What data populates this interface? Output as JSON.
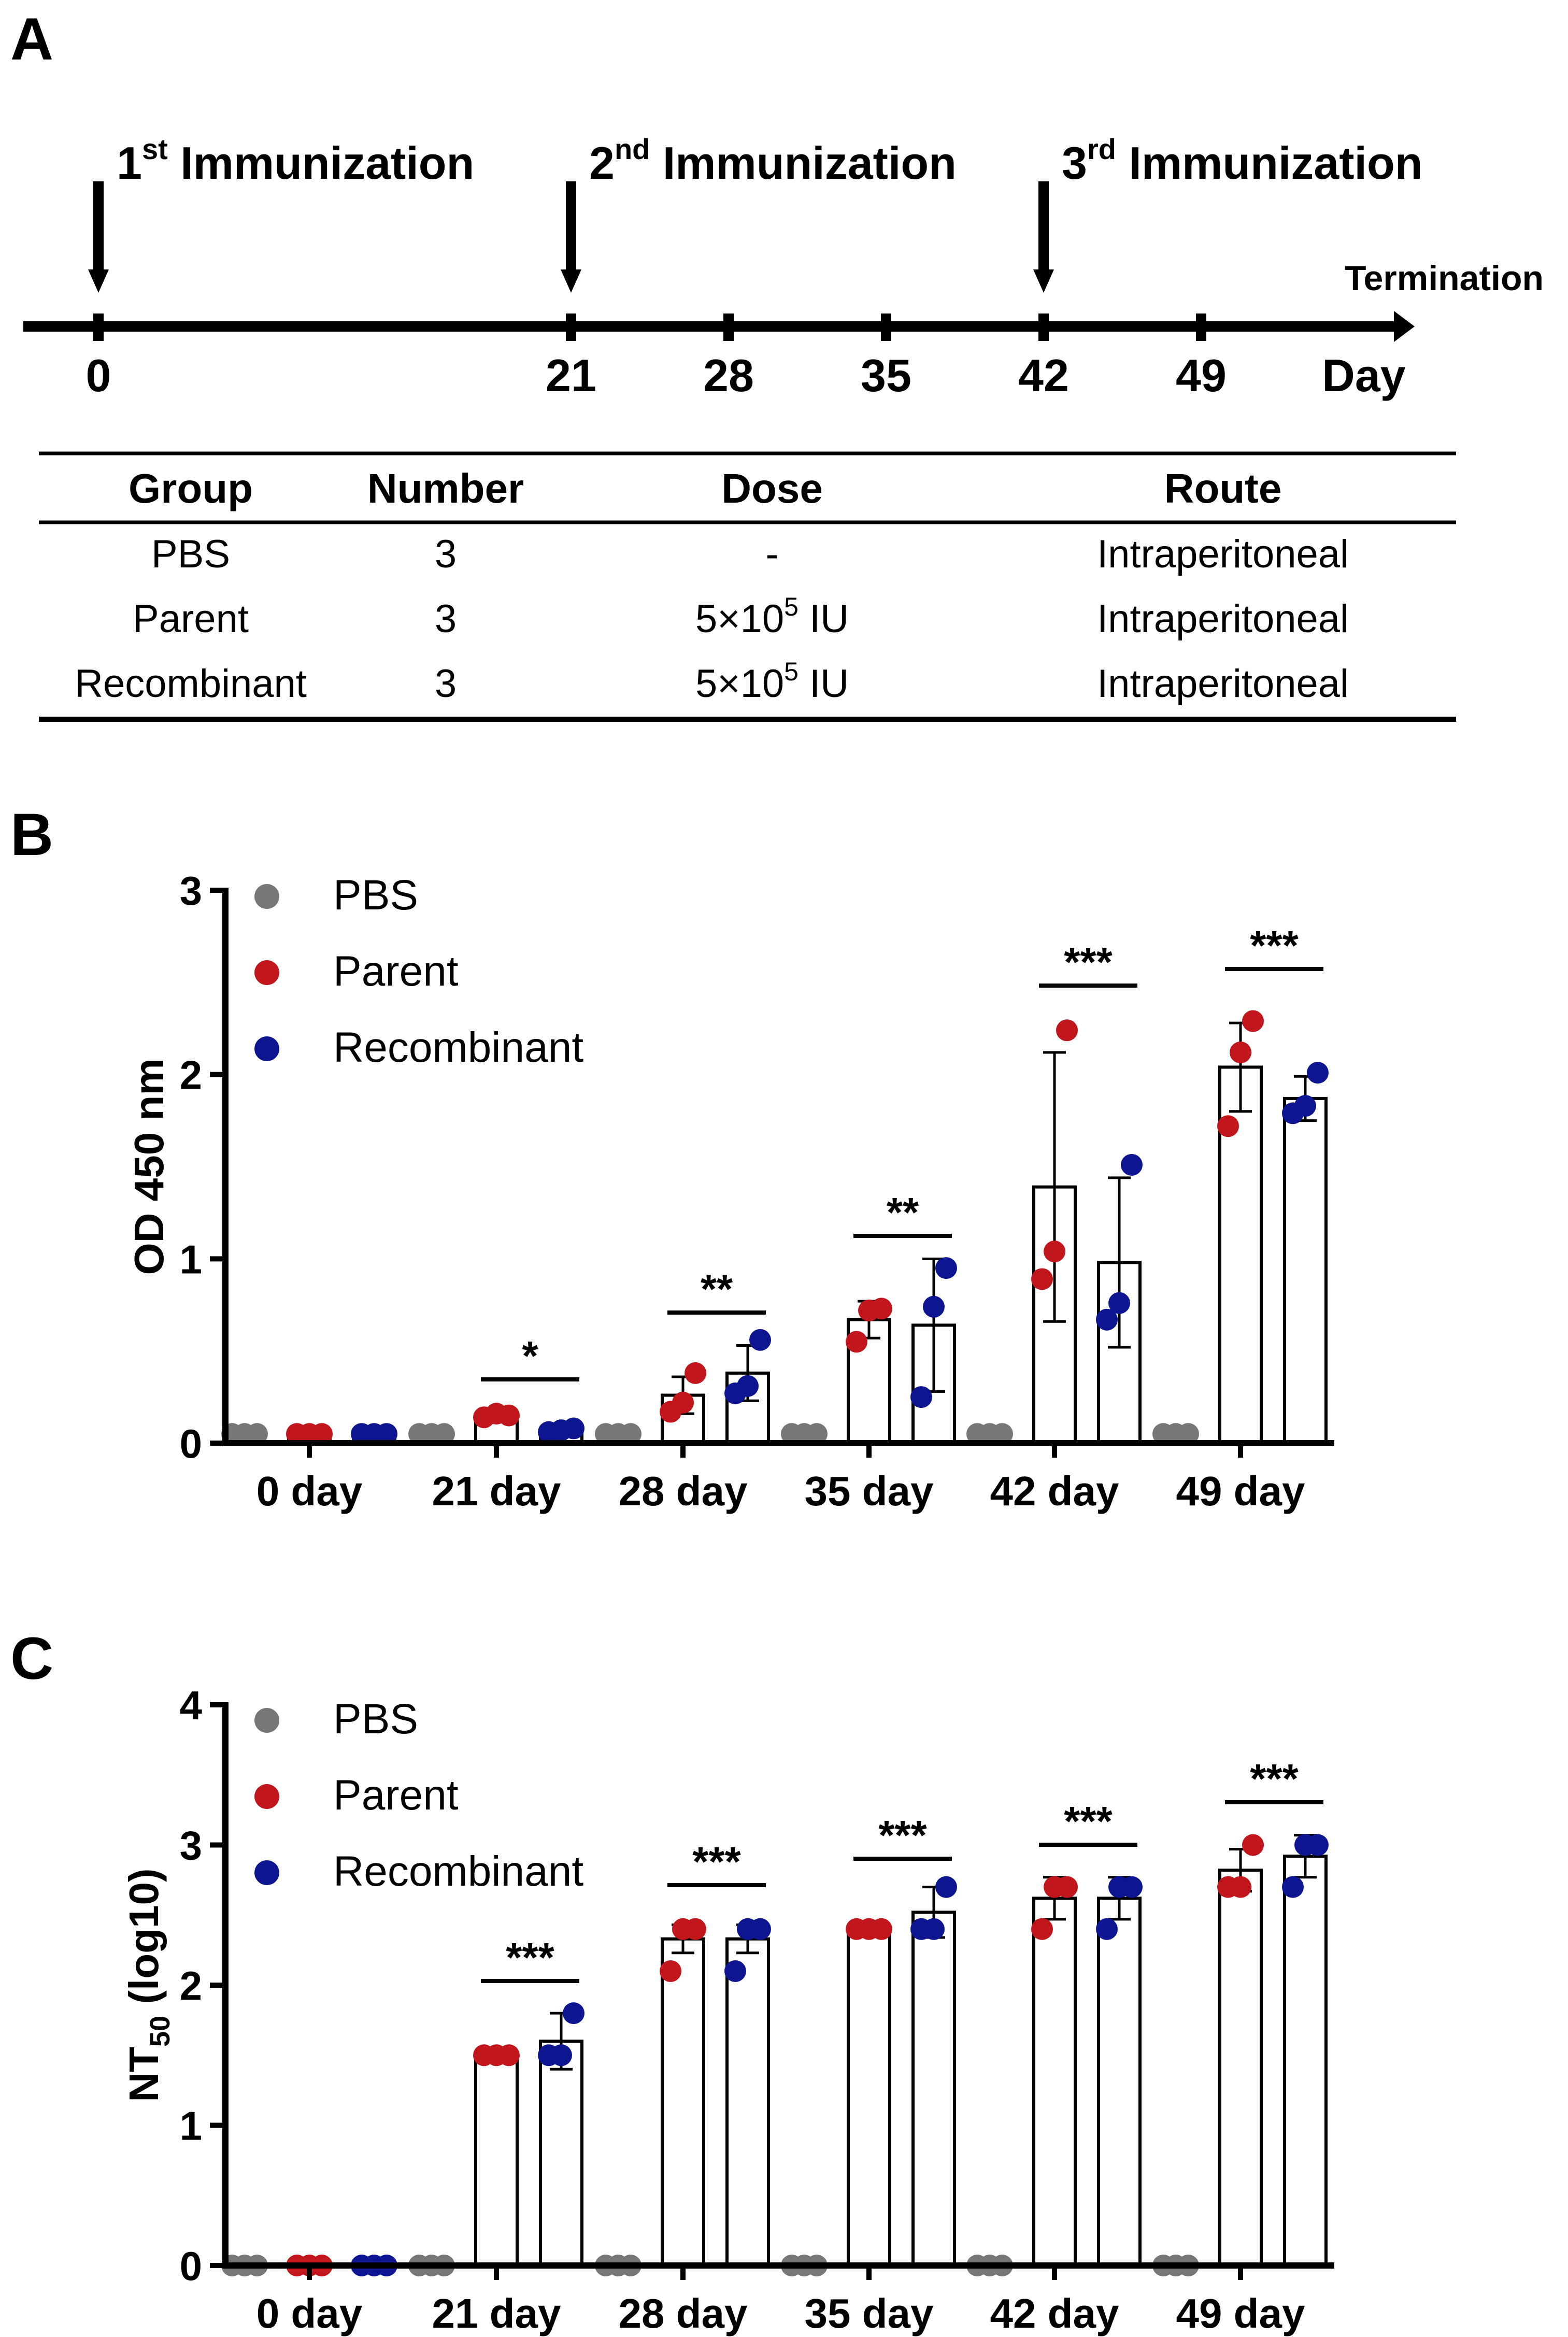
{
  "panel_a": {
    "label": "A",
    "immunizations": [
      {
        "num": "1",
        "sup": "st",
        "text": " Immunization",
        "day": 0
      },
      {
        "num": "2",
        "sup": "nd",
        "text": " Immunization",
        "day": 21
      },
      {
        "num": "3",
        "sup": "rd",
        "text": " Immunization",
        "day": 42
      }
    ],
    "termination_label": "Termination",
    "days": [
      0,
      21,
      28,
      35,
      42,
      49
    ],
    "day_unit": "Day",
    "table": {
      "headers": [
        "Group",
        "Number",
        "Dose",
        "Route"
      ],
      "rows": [
        {
          "group": "PBS",
          "number": "3",
          "dose": "-",
          "dose_exp": "",
          "dose_unit": "",
          "route": "Intraperitoneal"
        },
        {
          "group": "Parent",
          "number": "3",
          "dose": "5×10",
          "dose_exp": "5",
          "dose_unit": " IU",
          "route": "Intraperitoneal"
        },
        {
          "group": "Recombinant",
          "number": "3",
          "dose": "5×10",
          "dose_exp": "5",
          "dose_unit": " IU",
          "route": "Intraperitoneal"
        }
      ]
    }
  },
  "colors": {
    "PBS": "#777777",
    "Parent": "#c0161c",
    "Recombinant": "#0d1690"
  },
  "chart_data": [
    {
      "panel": "B",
      "type": "bar",
      "ylabel": "OD 450 nm",
      "ylim": [
        0,
        3
      ],
      "yticks": [
        0,
        1,
        2,
        3
      ],
      "categories": [
        "0 day",
        "21 day",
        "28 day",
        "35 day",
        "42 day",
        "49 day"
      ],
      "legend": [
        "PBS",
        "Parent",
        "Recombinant"
      ],
      "series": [
        {
          "name": "PBS",
          "means": [
            0.05,
            0.05,
            0.05,
            0.05,
            0.05,
            0.05
          ],
          "sd": [
            0,
            0,
            0,
            0,
            0,
            0
          ],
          "points": [
            [
              0.05,
              0.05,
              0.05
            ],
            [
              0.05,
              0.05,
              0.05
            ],
            [
              0.05,
              0.05,
              0.05
            ],
            [
              0.05,
              0.05,
              0.05
            ],
            [
              0.05,
              0.05,
              0.05
            ],
            [
              0.05,
              0.05,
              0.05
            ]
          ]
        },
        {
          "name": "Parent",
          "means": [
            0.05,
            0.15,
            0.26,
            0.67,
            1.39,
            2.04
          ],
          "sd": [
            0,
            0.02,
            0.1,
            0.1,
            0.73,
            0.24
          ],
          "points": [
            [
              0.05,
              0.05,
              0.05
            ],
            [
              0.14,
              0.16,
              0.15
            ],
            [
              0.17,
              0.22,
              0.38
            ],
            [
              0.55,
              0.72,
              0.73
            ],
            [
              0.89,
              1.04,
              2.24
            ],
            [
              1.72,
              2.12,
              2.29
            ]
          ]
        },
        {
          "name": "Recombinant",
          "means": [
            0.05,
            0.07,
            0.38,
            0.64,
            0.98,
            1.87
          ],
          "sd": [
            0,
            0.01,
            0.15,
            0.36,
            0.46,
            0.12
          ],
          "points": [
            [
              0.05,
              0.05,
              0.05
            ],
            [
              0.06,
              0.07,
              0.08
            ],
            [
              0.27,
              0.31,
              0.56
            ],
            [
              0.25,
              0.74,
              0.95
            ],
            [
              0.67,
              0.76,
              1.51
            ],
            [
              1.79,
              1.83,
              2.01
            ]
          ]
        }
      ],
      "significance": [
        {
          "category": "21 day",
          "label": "*"
        },
        {
          "category": "28 day",
          "label": "**"
        },
        {
          "category": "35 day",
          "label": "**"
        },
        {
          "category": "42 day",
          "label": "***"
        },
        {
          "category": "49 day",
          "label": "***"
        }
      ]
    },
    {
      "panel": "C",
      "type": "bar",
      "ylabel": "NT",
      "ylabel_sub": "50",
      "ylabel_suffix": " (log10)",
      "ylim": [
        0,
        4
      ],
      "yticks": [
        0,
        1,
        2,
        3,
        4
      ],
      "categories": [
        "0 day",
        "21 day",
        "28 day",
        "35 day",
        "42 day",
        "49 day"
      ],
      "legend": [
        "PBS",
        "Parent",
        "Recombinant"
      ],
      "series": [
        {
          "name": "PBS",
          "means": [
            0,
            0,
            0,
            0,
            0,
            0
          ],
          "sd": [
            0,
            0,
            0,
            0,
            0,
            0
          ],
          "points": [
            [
              0,
              0,
              0
            ],
            [
              0,
              0,
              0
            ],
            [
              0,
              0,
              0
            ],
            [
              0,
              0,
              0
            ],
            [
              0,
              0,
              0
            ],
            [
              0,
              0,
              0
            ]
          ]
        },
        {
          "name": "Parent",
          "means": [
            0,
            1.5,
            2.33,
            2.4,
            2.62,
            2.82
          ],
          "sd": [
            0,
            0,
            0.1,
            0,
            0.15,
            0.15
          ],
          "points": [
            [
              0,
              0,
              0
            ],
            [
              1.5,
              1.5,
              1.5
            ],
            [
              2.1,
              2.4,
              2.4
            ],
            [
              2.4,
              2.4,
              2.4
            ],
            [
              2.4,
              2.7,
              2.7
            ],
            [
              2.7,
              2.7,
              3.0
            ]
          ]
        },
        {
          "name": "Recombinant",
          "means": [
            0,
            1.6,
            2.33,
            2.52,
            2.62,
            2.92
          ],
          "sd": [
            0,
            0.2,
            0.1,
            0.18,
            0.15,
            0.15
          ],
          "points": [
            [
              0,
              0,
              0
            ],
            [
              1.5,
              1.5,
              1.8
            ],
            [
              2.1,
              2.4,
              2.4
            ],
            [
              2.4,
              2.4,
              2.7
            ],
            [
              2.4,
              2.7,
              2.7
            ],
            [
              2.7,
              3.0,
              3.0
            ]
          ]
        }
      ],
      "significance": [
        {
          "category": "21 day",
          "label": "***"
        },
        {
          "category": "28 day",
          "label": "***"
        },
        {
          "category": "35 day",
          "label": "***"
        },
        {
          "category": "42 day",
          "label": "***"
        },
        {
          "category": "49 day",
          "label": "***"
        }
      ]
    }
  ]
}
